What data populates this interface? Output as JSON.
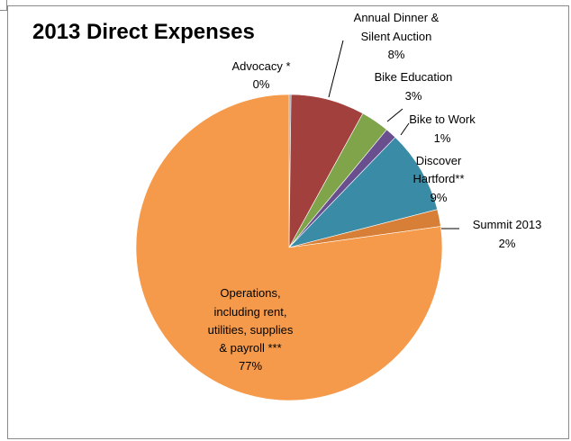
{
  "chart_data": {
    "type": "pie",
    "title": "2013 Direct Expenses",
    "slices": [
      {
        "label": "Advocacy *",
        "percent_label": "0%",
        "value": 0.2,
        "color": "#8e8fa3"
      },
      {
        "label": "Annual Dinner & Silent Auction",
        "percent_label": "8%",
        "value": 7.8,
        "color": "#a2403d"
      },
      {
        "label": "Bike Education",
        "percent_label": "3%",
        "value": 3.0,
        "color": "#7fa44a"
      },
      {
        "label": "Bike to Work",
        "percent_label": "1%",
        "value": 1.2,
        "color": "#6a4f8f"
      },
      {
        "label": "Discover Hartford**",
        "percent_label": "9%",
        "value": 8.8,
        "color": "#3a8ca6"
      },
      {
        "label": "Summit 2013",
        "percent_label": "2%",
        "value": 1.8,
        "color": "#d77f36"
      },
      {
        "label": "Operations, including rent, utilities, supplies & payroll ***",
        "percent_label": "77%",
        "value": 77.2,
        "color": "#f59a4b"
      }
    ]
  }
}
